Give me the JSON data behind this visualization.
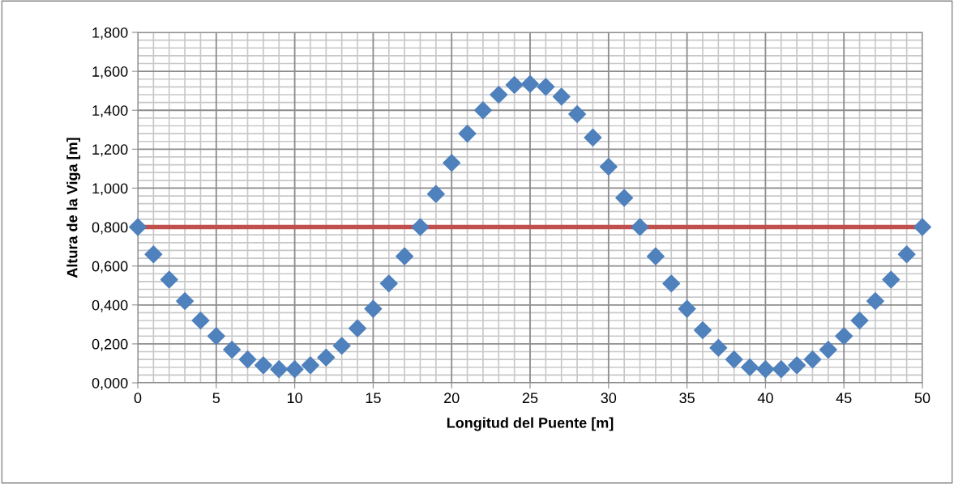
{
  "chart_data": {
    "type": "scatter",
    "xlabel": "Longitud del Puente [m]",
    "ylabel": "Altura de la Viga [m]",
    "x": [
      0,
      1,
      2,
      3,
      4,
      5,
      6,
      7,
      8,
      9,
      10,
      11,
      12,
      13,
      14,
      15,
      16,
      17,
      18,
      19,
      20,
      21,
      22,
      23,
      24,
      25,
      26,
      27,
      28,
      29,
      30,
      31,
      32,
      33,
      34,
      35,
      36,
      37,
      38,
      39,
      40,
      41,
      42,
      43,
      44,
      45,
      46,
      47,
      48,
      49,
      50
    ],
    "series": [
      {
        "color": "#4f81bd",
        "marker": "diamond",
        "values": [
          0.8,
          0.66,
          0.53,
          0.42,
          0.32,
          0.24,
          0.17,
          0.12,
          0.09,
          0.07,
          0.07,
          0.09,
          0.13,
          0.19,
          0.28,
          0.38,
          0.51,
          0.65,
          0.8,
          0.97,
          1.13,
          1.28,
          1.4,
          1.48,
          1.53,
          1.535,
          1.52,
          1.47,
          1.38,
          1.26,
          1.11,
          0.95,
          0.8,
          0.65,
          0.51,
          0.38,
          0.27,
          0.18,
          0.12,
          0.08,
          0.07,
          0.07,
          0.09,
          0.12,
          0.17,
          0.24,
          0.32,
          0.42,
          0.53,
          0.66,
          0.8
        ]
      }
    ],
    "ref_lines": [
      {
        "axis": "y",
        "value": 0.8,
        "color": "#c0504d"
      }
    ],
    "xlim": [
      0,
      50
    ],
    "xticks": [
      0,
      5,
      10,
      15,
      20,
      25,
      30,
      35,
      40,
      45,
      50
    ],
    "ylim": [
      0,
      1.8
    ],
    "yticks": [
      {
        "value": 0,
        "label": "0,000"
      },
      {
        "value": 0.2,
        "label": "0,200"
      },
      {
        "value": 0.4,
        "label": "0,400"
      },
      {
        "value": 0.6,
        "label": "0,600"
      },
      {
        "value": 0.8,
        "label": "0,800"
      },
      {
        "value": 1.0,
        "label": "1,000"
      },
      {
        "value": 1.2,
        "label": "1,200"
      },
      {
        "value": 1.4,
        "label": "1,400"
      },
      {
        "value": 1.6,
        "label": "1,600"
      },
      {
        "value": 1.8,
        "label": "1,800"
      }
    ],
    "grid": true,
    "legend": false
  }
}
